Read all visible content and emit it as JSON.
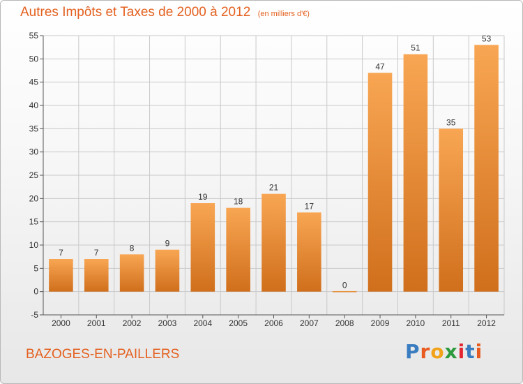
{
  "title": "Autres Impôts et Taxes de 2000 à 2012",
  "unit_note": "(en milliers d'€)",
  "commune": "BAZOGES-EN-PAILLERS",
  "logo": {
    "text": "Proxiti",
    "letters": [
      "P",
      "r",
      "o",
      "x",
      "i",
      "t",
      "i"
    ],
    "colors": [
      "#3a7cc0",
      "#e85a1f",
      "#f2a21a",
      "#2e9a3e",
      "#e3262f",
      "#3a7cc0",
      "#e85a1f"
    ]
  },
  "colors": {
    "title": "#e4601f",
    "bar_light": "#f8a653",
    "bar_dark": "#d06f1c",
    "grid": "#c9c9c9"
  },
  "chart_data": {
    "type": "bar",
    "title": "Autres Impôts et Taxes de 2000 à 2012",
    "subtitle": "(en milliers d'€)",
    "categories": [
      "2000",
      "2001",
      "2002",
      "2003",
      "2004",
      "2005",
      "2006",
      "2007",
      "2008",
      "2009",
      "2010",
      "2011",
      "2012"
    ],
    "values": [
      7,
      7,
      8,
      9,
      19,
      18,
      21,
      17,
      0,
      47,
      51,
      35,
      53
    ],
    "data_labels": [
      "7",
      "7",
      "8",
      "9",
      "19",
      "18",
      "21",
      "17",
      "0",
      "47",
      "51",
      "35",
      "53"
    ],
    "ylim": [
      -5,
      55
    ],
    "yticks": [
      -5,
      0,
      5,
      10,
      15,
      20,
      25,
      30,
      35,
      40,
      45,
      50,
      55
    ],
    "grid": true,
    "legend": "none"
  }
}
